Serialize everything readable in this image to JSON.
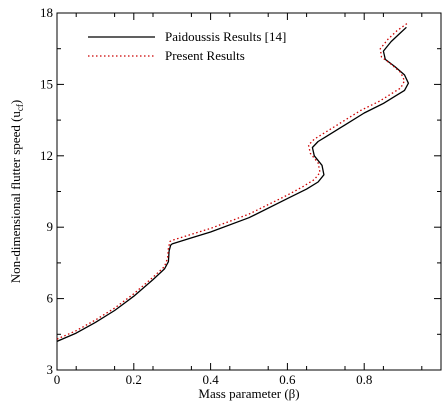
{
  "chart_data": {
    "type": "line",
    "title": "",
    "xlabel": "Mass parameter (β)",
    "ylabel": "Non-dimensional flutter speed (u",
    "ylabel_subscript": "cf",
    "ylabel_suffix": ")",
    "xlim": [
      0,
      1
    ],
    "ylim": [
      3,
      18
    ],
    "x_ticks": [
      0,
      0.2,
      0.4,
      0.6,
      0.8
    ],
    "x_tick_labels": [
      "0",
      "0.2",
      "0.4",
      "0.6",
      "0.8"
    ],
    "y_ticks": [
      3,
      6,
      9,
      12,
      15,
      18
    ],
    "y_tick_labels": [
      "3",
      "6",
      "9",
      "12",
      "15",
      "18"
    ],
    "grid": false,
    "legend_position": "top-left",
    "series": [
      {
        "name": "Paidoussis Results [14]",
        "color": "#000000",
        "style": "solid",
        "points": [
          [
            0.0,
            4.2
          ],
          [
            0.05,
            4.55
          ],
          [
            0.1,
            5.0
          ],
          [
            0.15,
            5.5
          ],
          [
            0.2,
            6.1
          ],
          [
            0.25,
            6.8
          ],
          [
            0.28,
            7.25
          ],
          [
            0.29,
            7.55
          ],
          [
            0.292,
            8.0
          ],
          [
            0.296,
            8.25
          ],
          [
            0.3,
            8.3
          ],
          [
            0.35,
            8.55
          ],
          [
            0.4,
            8.8
          ],
          [
            0.5,
            9.4
          ],
          [
            0.6,
            10.2
          ],
          [
            0.65,
            10.6
          ],
          [
            0.68,
            10.9
          ],
          [
            0.695,
            11.2
          ],
          [
            0.69,
            11.6
          ],
          [
            0.67,
            12.0
          ],
          [
            0.665,
            12.35
          ],
          [
            0.68,
            12.6
          ],
          [
            0.7,
            12.8
          ],
          [
            0.75,
            13.3
          ],
          [
            0.8,
            13.8
          ],
          [
            0.85,
            14.2
          ],
          [
            0.88,
            14.5
          ],
          [
            0.905,
            14.75
          ],
          [
            0.915,
            15.05
          ],
          [
            0.905,
            15.4
          ],
          [
            0.88,
            15.75
          ],
          [
            0.855,
            16.05
          ],
          [
            0.85,
            16.4
          ],
          [
            0.87,
            16.8
          ],
          [
            0.89,
            17.1
          ],
          [
            0.91,
            17.4
          ]
        ]
      },
      {
        "name": "Present Results",
        "color": "#cc0000",
        "style": "dotted",
        "points": [
          [
            0.0,
            4.3
          ],
          [
            0.05,
            4.65
          ],
          [
            0.1,
            5.1
          ],
          [
            0.15,
            5.6
          ],
          [
            0.2,
            6.2
          ],
          [
            0.25,
            6.9
          ],
          [
            0.28,
            7.35
          ],
          [
            0.288,
            7.7
          ],
          [
            0.29,
            8.1
          ],
          [
            0.294,
            8.4
          ],
          [
            0.3,
            8.45
          ],
          [
            0.35,
            8.7
          ],
          [
            0.4,
            8.95
          ],
          [
            0.5,
            9.55
          ],
          [
            0.6,
            10.35
          ],
          [
            0.64,
            10.7
          ],
          [
            0.67,
            11.0
          ],
          [
            0.685,
            11.3
          ],
          [
            0.68,
            11.7
          ],
          [
            0.66,
            12.1
          ],
          [
            0.655,
            12.45
          ],
          [
            0.67,
            12.7
          ],
          [
            0.69,
            12.9
          ],
          [
            0.74,
            13.4
          ],
          [
            0.79,
            13.9
          ],
          [
            0.84,
            14.3
          ],
          [
            0.87,
            14.6
          ],
          [
            0.895,
            14.85
          ],
          [
            0.905,
            15.15
          ],
          [
            0.895,
            15.5
          ],
          [
            0.87,
            15.85
          ],
          [
            0.845,
            16.15
          ],
          [
            0.842,
            16.5
          ],
          [
            0.862,
            16.9
          ],
          [
            0.885,
            17.25
          ],
          [
            0.915,
            17.6
          ]
        ]
      }
    ]
  }
}
